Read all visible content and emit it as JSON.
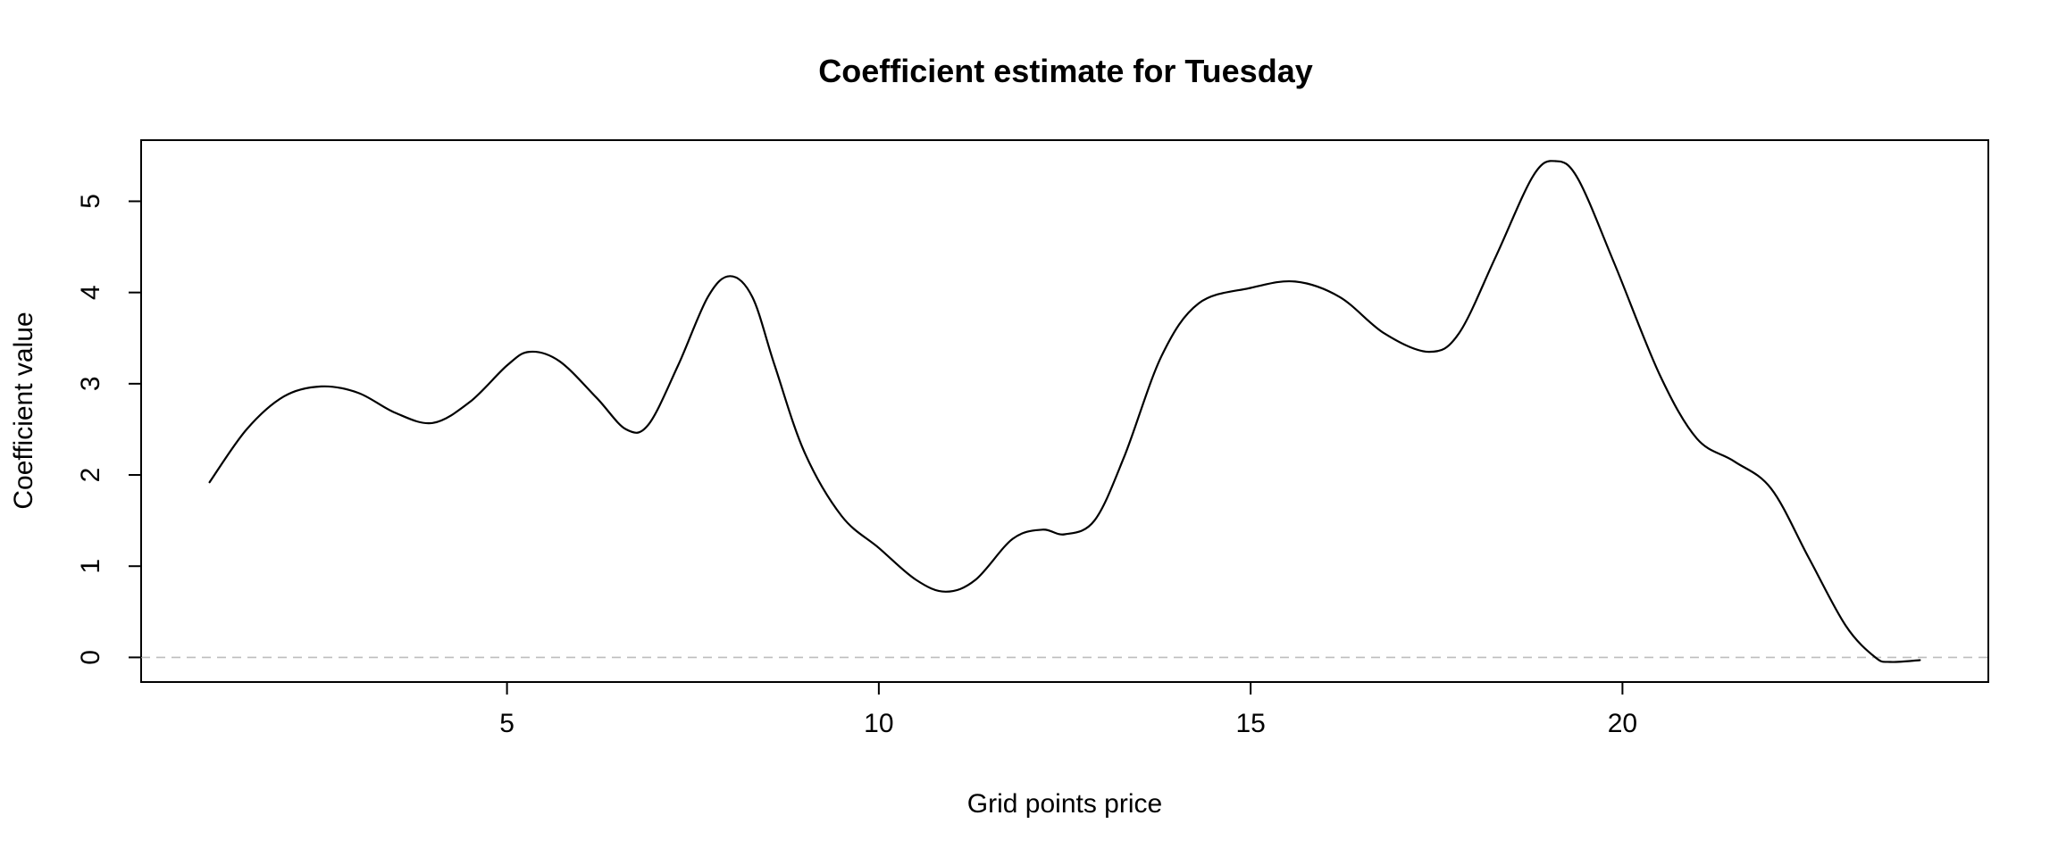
{
  "chart_data": {
    "type": "line",
    "title": "Coefficient estimate for Tuesday",
    "xlabel": "Grid points price",
    "ylabel": "Coefficient value",
    "xlim": [
      0.08,
      24.92
    ],
    "ylim": [
      -0.27,
      5.67
    ],
    "x_ticks": [
      5,
      10,
      15,
      20
    ],
    "y_ticks": [
      0,
      1,
      2,
      3,
      4,
      5
    ],
    "reference_line": {
      "y": 0,
      "style": "dashed",
      "color": "#bebebe"
    },
    "series": [
      {
        "color": "#000000",
        "points": [
          [
            1.0,
            1.92
          ],
          [
            1.5,
            2.5
          ],
          [
            2.0,
            2.86
          ],
          [
            2.5,
            2.97
          ],
          [
            3.0,
            2.9
          ],
          [
            3.5,
            2.68
          ],
          [
            4.0,
            2.57
          ],
          [
            4.5,
            2.8
          ],
          [
            5.0,
            3.2
          ],
          [
            5.3,
            3.35
          ],
          [
            5.7,
            3.25
          ],
          [
            6.2,
            2.85
          ],
          [
            6.6,
            2.5
          ],
          [
            6.9,
            2.55
          ],
          [
            7.3,
            3.2
          ],
          [
            7.7,
            3.95
          ],
          [
            8.0,
            4.18
          ],
          [
            8.3,
            3.95
          ],
          [
            8.6,
            3.2
          ],
          [
            9.0,
            2.25
          ],
          [
            9.5,
            1.55
          ],
          [
            10.0,
            1.2
          ],
          [
            10.5,
            0.85
          ],
          [
            10.9,
            0.72
          ],
          [
            11.3,
            0.85
          ],
          [
            11.8,
            1.3
          ],
          [
            12.2,
            1.4
          ],
          [
            12.5,
            1.35
          ],
          [
            12.9,
            1.5
          ],
          [
            13.3,
            2.2
          ],
          [
            13.8,
            3.3
          ],
          [
            14.3,
            3.88
          ],
          [
            15.0,
            4.05
          ],
          [
            15.6,
            4.12
          ],
          [
            16.2,
            3.95
          ],
          [
            16.8,
            3.55
          ],
          [
            17.4,
            3.35
          ],
          [
            17.8,
            3.55
          ],
          [
            18.3,
            4.4
          ],
          [
            18.8,
            5.28
          ],
          [
            19.1,
            5.44
          ],
          [
            19.4,
            5.25
          ],
          [
            19.9,
            4.3
          ],
          [
            20.5,
            3.1
          ],
          [
            21.0,
            2.4
          ],
          [
            21.5,
            2.15
          ],
          [
            22.0,
            1.85
          ],
          [
            22.5,
            1.1
          ],
          [
            23.0,
            0.35
          ],
          [
            23.4,
            0.0
          ],
          [
            23.6,
            -0.05
          ],
          [
            24.0,
            -0.03
          ]
        ]
      }
    ]
  }
}
